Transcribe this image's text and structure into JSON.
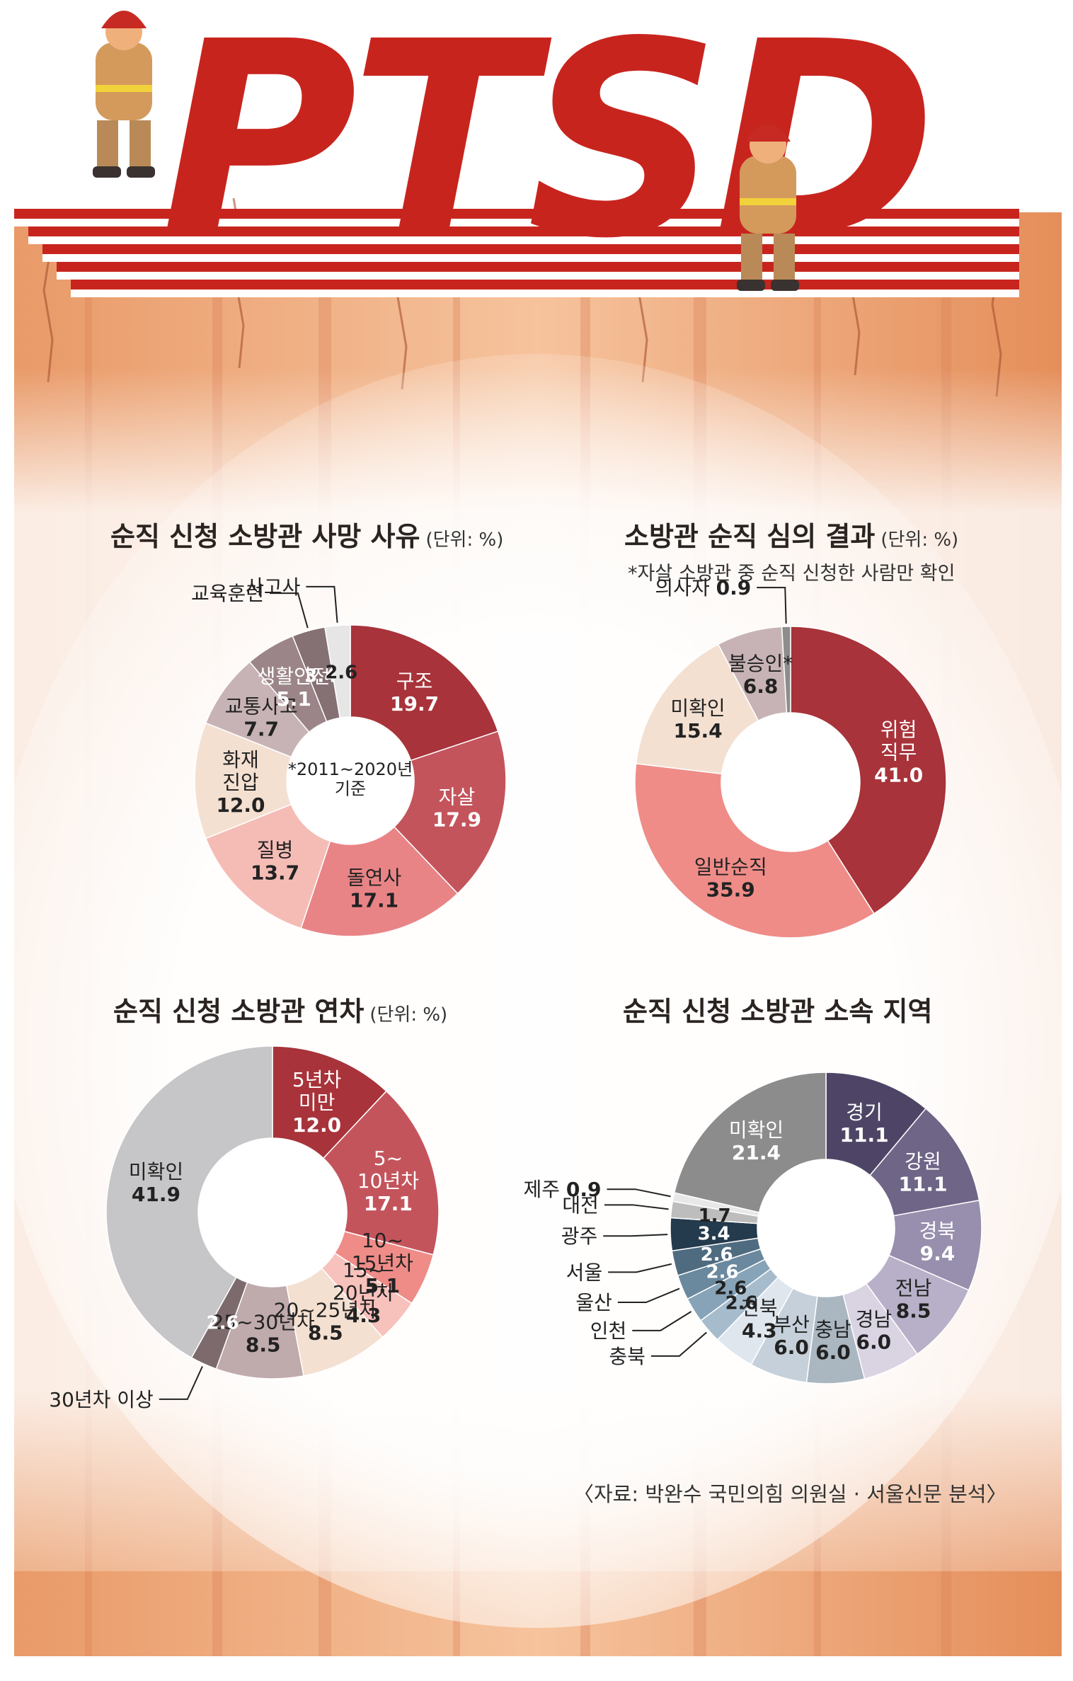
{
  "header": {
    "logo_text": "PTSD"
  },
  "source": "〈자료: 박완수 국민의힘 의원실 · 서울신문 분석〉",
  "colors": {
    "backdrop": "#f1b184",
    "logo_red": "#c8241e",
    "white": "#ffffff"
  },
  "chart_data": [
    {
      "id": "death-cause",
      "type": "pie",
      "title": "순직 신청 소방관 사망 사유",
      "unit": "(단위: %)",
      "center_text": [
        "*2011~2020년",
        "기준"
      ],
      "slices": [
        {
          "label": "구조",
          "value": 19.7,
          "color": "#a8333a"
        },
        {
          "label": "자살",
          "value": 17.9,
          "color": "#c4545c"
        },
        {
          "label": "돌연사",
          "value": 17.1,
          "color": "#e98486"
        },
        {
          "label": "질병",
          "value": 13.7,
          "color": "#f5bcb6"
        },
        {
          "label": "화재 진압",
          "value": 12.0,
          "color": "#f4e0d1"
        },
        {
          "label": "교통사고",
          "value": 7.7,
          "color": "#c7b3b5"
        },
        {
          "label": "생활안전",
          "value": 5.1,
          "color": "#9b8588"
        },
        {
          "label": "교육훈련",
          "value": 3.4,
          "color": "#857073"
        },
        {
          "label": "사고사",
          "value": 2.6,
          "color": "#e6e6e6"
        }
      ]
    },
    {
      "id": "review-result",
      "type": "pie",
      "title": "소방관 순직 심의 결과",
      "unit": "(단위: %)",
      "note": "*자살 소방관 중 순직 신청한 사람만 확인",
      "slices": [
        {
          "label": "위험 직무",
          "value": 41.0,
          "color": "#a8333a"
        },
        {
          "label": "일반순직",
          "value": 35.9,
          "color": "#ef8c88"
        },
        {
          "label": "미확인",
          "value": 15.4,
          "color": "#f4e0d1"
        },
        {
          "label": "불승인*",
          "value": 6.8,
          "color": "#c7b3b5"
        },
        {
          "label": "의사자",
          "value": 0.9,
          "color": "#8d8d8d"
        }
      ]
    },
    {
      "id": "years-of-service",
      "type": "pie",
      "title": "순직 신청 소방관 연차",
      "unit": "(단위: %)",
      "slices": [
        {
          "label": "5년차 미만",
          "value": 12.0,
          "color": "#a8333a"
        },
        {
          "label": "5~ 10년차",
          "value": 17.1,
          "color": "#c4545c"
        },
        {
          "label": "10~ 15년차",
          "value": 5.1,
          "color": "#ef8c88"
        },
        {
          "label": "15~ 20년차",
          "value": 4.3,
          "color": "#f7c2bc"
        },
        {
          "label": "20~25년차",
          "value": 8.5,
          "color": "#f4e0d1"
        },
        {
          "label": "25~30년차",
          "value": 8.5,
          "color": "#bfaaac"
        },
        {
          "label": "30년차 이상",
          "value": 2.6,
          "color": "#7c6a6c"
        },
        {
          "label": "미확인",
          "value": 41.9,
          "color": "#c6c6c8"
        }
      ]
    },
    {
      "id": "region",
      "type": "pie",
      "title": "순직 신청 소방관 소속 지역",
      "slices": [
        {
          "label": "경기",
          "value": 11.1,
          "color": "#4e4566"
        },
        {
          "label": "강원",
          "value": 11.1,
          "color": "#6f6587"
        },
        {
          "label": "경북",
          "value": 9.4,
          "color": "#978fad"
        },
        {
          "label": "전남",
          "value": 8.5,
          "color": "#b7b0c8"
        },
        {
          "label": "경남",
          "value": 6.0,
          "color": "#d9d3e2"
        },
        {
          "label": "충남",
          "value": 6.0,
          "color": "#aab6c0"
        },
        {
          "label": "부산",
          "value": 6.0,
          "color": "#c5d0da"
        },
        {
          "label": "전북",
          "value": 4.3,
          "color": "#dfe6ee"
        },
        {
          "label": "충북",
          "value": 2.6,
          "color": "#a6bccd"
        },
        {
          "label": "인천",
          "value": 2.6,
          "color": "#86a3b7"
        },
        {
          "label": "울산",
          "value": 2.6,
          "color": "#6a889e"
        },
        {
          "label": "서울",
          "value": 2.6,
          "color": "#4f6b80"
        },
        {
          "label": "광주",
          "value": 3.4,
          "color": "#243a4d"
        },
        {
          "label": "대전",
          "value": 1.7,
          "color": "#bdbdbd"
        },
        {
          "label": "제주",
          "value": 0.9,
          "color": "#e8e8e8"
        },
        {
          "label": "미확인",
          "value": 21.4,
          "color": "#8c8c8c"
        }
      ]
    }
  ]
}
